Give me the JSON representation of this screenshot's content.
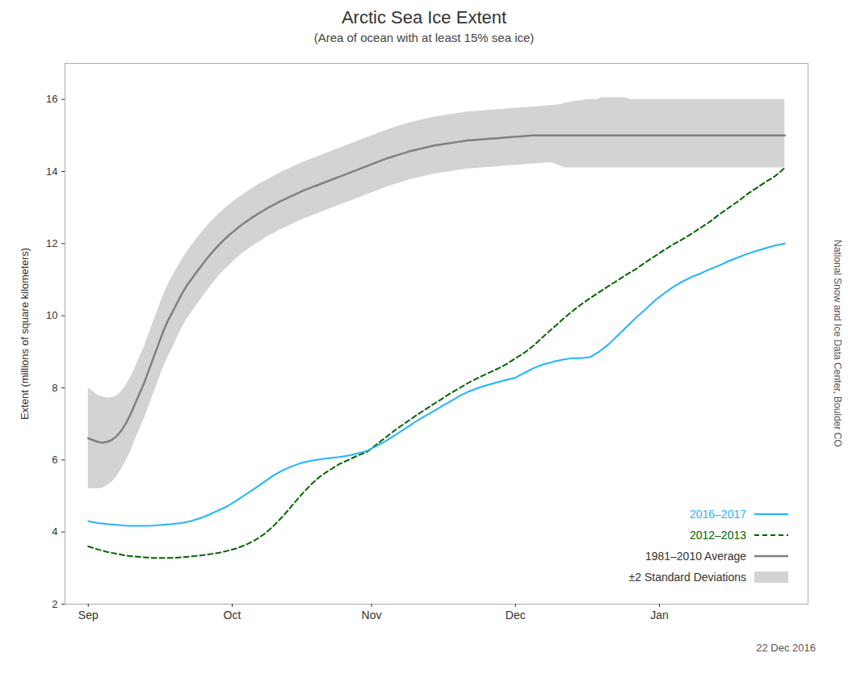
{
  "chart_data": {
    "type": "line",
    "title": "Arctic Sea Ice Extent",
    "subtitle": "(Area of ocean with at least 15% sea ice)",
    "ylabel": "Extent (millions of square kilometers)",
    "annotations": [
      "National Snow and Ice Data Center, Boulder CO",
      "22 Dec 2016"
    ],
    "xlim": [
      -5,
      155
    ],
    "xticks": [
      {
        "value": 0,
        "label": "Sep"
      },
      {
        "value": 31,
        "label": "Oct"
      },
      {
        "value": 61,
        "label": "Nov"
      },
      {
        "value": 92,
        "label": "Dec"
      },
      {
        "value": 123,
        "label": "Jan"
      }
    ],
    "ylim": [
      2,
      17
    ],
    "yticks": [
      2,
      4,
      6,
      8,
      10,
      12,
      14,
      16
    ],
    "grid": false,
    "legend": "lower right",
    "series": [
      {
        "name": "±2 Standard Deviations",
        "type": "area",
        "color": "#d3d3d3",
        "x": [
          0,
          1.01,
          2.01,
          3.02,
          4.03,
          5.03,
          6.04,
          7.05,
          8.05,
          9.06,
          10.07,
          11.07,
          12.08,
          13.09,
          14.09,
          15.1,
          16.11,
          17.11,
          18.12,
          19.13,
          20.13,
          21.14,
          22.15,
          23.15,
          24.16,
          25.17,
          26.17,
          27.18,
          28.19,
          29.19,
          30.2,
          31.21,
          32.21,
          33.22,
          34.23,
          35.23,
          36.24,
          37.25,
          38.26,
          39.26,
          40.27,
          41.28,
          42.28,
          43.29,
          44.3,
          45.3,
          46.31,
          47.32,
          48.32,
          49.33,
          50.34,
          51.34,
          52.35,
          53.36,
          54.36,
          55.37,
          56.38,
          57.38,
          58.39,
          59.4,
          60.4,
          61.41,
          62.42,
          63.42,
          64.43,
          65.44,
          66.44,
          67.45,
          68.46,
          69.46,
          70.47,
          71.48,
          72.48,
          73.49,
          74.5,
          75.5,
          76.51,
          77.52,
          78.52,
          79.53,
          80.54,
          81.54,
          82.55,
          83.56,
          84.56,
          85.57,
          86.58,
          87.58,
          88.59,
          89.6,
          90.6,
          91.61,
          92.62,
          93.62,
          94.63,
          95.64,
          96.64,
          97.65,
          98.66,
          99.66,
          100.67,
          101.68,
          102.68,
          103.69,
          104.7,
          105.7,
          106.71,
          107.72,
          108.72,
          109.73,
          110.74,
          111.74,
          112.75,
          113.76,
          114.77,
          115.77,
          116.78,
          117.79,
          118.79,
          119.8,
          120.81,
          121.81,
          122.82,
          123.83,
          124.83,
          125.84,
          126.85,
          127.85,
          128.86,
          129.87,
          130.87,
          131.88,
          132.89,
          133.89,
          134.9,
          135.91,
          136.91,
          137.92,
          138.93,
          139.93,
          140.94,
          141.95,
          142.95,
          143.96,
          144.97,
          145.97,
          146.98,
          147.99,
          148.99,
          150
        ],
        "lower": [
          5.2,
          5.2,
          5.2,
          5.22,
          5.28,
          5.38,
          5.52,
          5.72,
          5.95,
          6.22,
          6.55,
          6.85,
          7.15,
          7.5,
          7.85,
          8.2,
          8.55,
          8.85,
          9.1,
          9.38,
          9.65,
          9.89,
          10.07,
          10.26,
          10.43,
          10.62,
          10.79,
          10.96,
          11.11,
          11.25,
          11.38,
          11.5,
          11.62,
          11.73,
          11.82,
          11.92,
          12.0,
          12.08,
          12.17,
          12.24,
          12.31,
          12.38,
          12.44,
          12.5,
          12.56,
          12.62,
          12.68,
          12.73,
          12.78,
          12.83,
          12.88,
          12.93,
          12.98,
          13.03,
          13.08,
          13.13,
          13.18,
          13.23,
          13.28,
          13.33,
          13.38,
          13.43,
          13.48,
          13.53,
          13.58,
          13.62,
          13.66,
          13.7,
          13.74,
          13.78,
          13.81,
          13.84,
          13.87,
          13.9,
          13.93,
          13.95,
          13.97,
          13.99,
          14.01,
          14.03,
          14.05,
          14.07,
          14.08,
          14.09,
          14.1,
          14.11,
          14.12,
          14.13,
          14.14,
          14.15,
          14.16,
          14.17,
          14.18,
          14.19,
          14.2,
          14.21,
          14.22,
          14.23,
          14.24,
          14.25,
          14.2,
          14.15,
          14.1,
          14.1,
          14.1,
          14.1,
          14.1,
          14.1,
          14.1,
          14.1,
          14.1,
          14.1,
          14.1,
          14.1,
          14.1,
          14.1,
          14.1,
          14.1,
          14.1,
          14.1,
          14.1,
          14.1,
          14.1,
          14.1,
          14.1,
          14.1,
          14.1,
          14.1,
          14.1,
          14.1,
          14.1,
          14.1,
          14.1,
          14.1,
          14.1,
          14.1,
          14.1,
          14.1,
          14.1,
          14.1,
          14.1,
          14.1,
          14.1,
          14.1,
          14.1,
          14.1,
          14.1,
          14.1,
          14.1,
          14.1
        ],
        "upper": [
          8.0,
          7.9,
          7.8,
          7.75,
          7.72,
          7.73,
          7.77,
          7.88,
          8.05,
          8.28,
          8.55,
          8.85,
          9.15,
          9.5,
          9.85,
          10.2,
          10.55,
          10.85,
          11.1,
          11.32,
          11.55,
          11.75,
          11.93,
          12.1,
          12.27,
          12.42,
          12.57,
          12.7,
          12.83,
          12.95,
          13.06,
          13.16,
          13.26,
          13.35,
          13.44,
          13.52,
          13.6,
          13.68,
          13.75,
          13.82,
          13.89,
          13.96,
          14.02,
          14.08,
          14.14,
          14.2,
          14.26,
          14.31,
          14.36,
          14.41,
          14.46,
          14.51,
          14.56,
          14.61,
          14.66,
          14.71,
          14.76,
          14.81,
          14.86,
          14.91,
          14.96,
          15.01,
          15.06,
          15.11,
          15.16,
          15.2,
          15.24,
          15.28,
          15.32,
          15.36,
          15.39,
          15.42,
          15.45,
          15.48,
          15.51,
          15.53,
          15.55,
          15.57,
          15.59,
          15.61,
          15.63,
          15.65,
          15.66,
          15.67,
          15.68,
          15.69,
          15.7,
          15.71,
          15.72,
          15.73,
          15.74,
          15.75,
          15.76,
          15.77,
          15.78,
          15.79,
          15.8,
          15.81,
          15.82,
          15.83,
          15.84,
          15.85,
          15.9,
          15.92,
          15.94,
          15.96,
          15.98,
          16.0,
          16.0,
          16.0,
          16.05,
          16.05,
          16.05,
          16.05,
          16.05,
          16.05,
          16.0,
          16.0,
          16.0,
          16.0,
          16.0,
          16.0,
          16.0,
          16.0,
          16.0,
          16.0,
          16.0,
          16.0,
          16.0,
          16.0,
          16.0,
          16.0,
          16.0,
          16.0,
          16.0,
          16.0,
          16.0,
          16.0,
          16.0,
          16.0,
          16.0,
          16.0,
          16.0,
          16.0,
          16.0,
          16.0,
          16.0,
          16.0,
          16.0,
          16.0
        ]
      },
      {
        "name": "1981–2010 Average",
        "color": "#808080",
        "x": [
          0,
          1.01,
          2.01,
          3.02,
          4.03,
          5.03,
          6.04,
          7.05,
          8.05,
          9.06,
          10.07,
          11.07,
          12.08,
          13.09,
          14.09,
          15.1,
          16.11,
          17.11,
          18.12,
          19.13,
          20.13,
          21.14,
          22.15,
          23.15,
          24.16,
          25.17,
          26.17,
          27.18,
          28.19,
          29.19,
          30.2,
          31.21,
          32.21,
          33.22,
          34.23,
          35.23,
          36.24,
          37.25,
          38.26,
          39.26,
          40.27,
          41.28,
          42.28,
          43.29,
          44.3,
          45.3,
          46.31,
          47.32,
          48.32,
          49.33,
          50.34,
          51.34,
          52.35,
          53.36,
          54.36,
          55.37,
          56.38,
          57.38,
          58.39,
          59.4,
          60.4,
          61.41,
          62.42,
          63.42,
          64.43,
          65.44,
          66.44,
          67.45,
          68.46,
          69.46,
          70.47,
          71.48,
          72.48,
          73.49,
          74.5,
          75.5,
          76.51,
          77.52,
          78.52,
          79.53,
          80.54,
          81.54,
          82.55,
          83.56,
          84.56,
          85.57,
          86.58,
          87.58,
          88.59,
          89.6,
          90.6,
          91.61,
          92.62,
          93.62,
          94.63,
          95.64,
          96.64,
          97.65,
          98.66,
          99.66,
          100.67,
          101.68,
          102.68,
          103.69,
          104.7,
          105.7,
          106.71,
          107.72,
          108.72,
          109.73,
          110.74,
          111.74,
          112.75,
          113.76,
          114.77,
          115.77,
          116.78,
          117.79,
          118.79,
          119.8,
          120.81,
          121.81,
          122.82,
          123.83,
          124.83,
          125.84,
          126.85,
          127.85,
          128.86,
          129.87,
          130.87,
          131.88,
          132.89,
          133.89,
          134.9,
          135.91,
          136.91,
          137.92,
          138.93,
          139.93,
          140.94,
          141.95,
          142.95,
          143.96,
          144.97,
          145.97,
          146.98,
          147.99,
          148.99,
          150
        ],
        "values": [
          6.6,
          6.55,
          6.5,
          6.48,
          6.5,
          6.55,
          6.65,
          6.8,
          7.0,
          7.25,
          7.55,
          7.85,
          8.15,
          8.5,
          8.85,
          9.2,
          9.55,
          9.85,
          10.1,
          10.35,
          10.6,
          10.82,
          11.0,
          11.18,
          11.35,
          11.52,
          11.68,
          11.83,
          11.97,
          12.1,
          12.22,
          12.33,
          12.44,
          12.54,
          12.63,
          12.72,
          12.8,
          12.88,
          12.96,
          13.03,
          13.1,
          13.17,
          13.23,
          13.29,
          13.35,
          13.41,
          13.47,
          13.52,
          13.57,
          13.62,
          13.67,
          13.72,
          13.77,
          13.82,
          13.87,
          13.92,
          13.97,
          14.02,
          14.07,
          14.12,
          14.17,
          14.22,
          14.27,
          14.32,
          14.37,
          14.41,
          14.45,
          14.49,
          14.53,
          14.57,
          14.6,
          14.63,
          14.66,
          14.69,
          14.72,
          14.74,
          14.76,
          14.78,
          14.8,
          14.82,
          14.84,
          14.86,
          14.87,
          14.88,
          14.89,
          14.9,
          14.91,
          14.92,
          14.93,
          14.94,
          14.95,
          14.96,
          14.97,
          14.98,
          14.99,
          15.0,
          15.0,
          15.0,
          15.0,
          15.0,
          15.0,
          15.0,
          15.0,
          15.0,
          15.0,
          15.0,
          15.0,
          15.0,
          15.0,
          15.0,
          15.0,
          15.0,
          15.0,
          15.0,
          15.0,
          15.0,
          15.0,
          15.0,
          15.0,
          15.0,
          15.0,
          15.0,
          15.0,
          15.0,
          15.0,
          15.0,
          15.0,
          15.0,
          15.0,
          15.0,
          15.0,
          15.0,
          15.0,
          15.0,
          15.0,
          15.0,
          15.0,
          15.0,
          15.0,
          15.0,
          15.0,
          15.0,
          15.0,
          15.0,
          15.0,
          15.0,
          15.0,
          15.0,
          15.0,
          15.0
        ]
      },
      {
        "name": "2012–2013",
        "color": "#006400",
        "line_style": "dashed",
        "x": [
          0,
          2,
          4,
          6,
          8,
          10,
          12,
          14,
          16,
          18,
          20,
          22,
          24,
          26,
          28,
          30,
          32,
          34,
          36,
          38,
          40,
          42,
          44,
          46,
          48,
          50,
          52,
          54,
          56,
          58,
          60,
          62,
          64,
          66,
          68,
          70,
          72,
          74,
          76,
          78,
          80,
          82,
          84,
          86,
          88,
          90,
          92,
          94,
          96,
          98,
          100,
          102,
          104,
          106,
          108,
          110,
          112,
          114,
          116,
          118,
          120,
          122,
          124,
          126,
          128,
          130,
          132,
          134,
          136,
          138,
          140,
          142,
          144,
          146,
          148,
          150
        ],
        "values": [
          3.6,
          3.52,
          3.45,
          3.4,
          3.35,
          3.32,
          3.3,
          3.28,
          3.28,
          3.28,
          3.3,
          3.32,
          3.35,
          3.38,
          3.42,
          3.48,
          3.55,
          3.65,
          3.78,
          3.95,
          4.18,
          4.45,
          4.75,
          5.05,
          5.32,
          5.55,
          5.72,
          5.88,
          6.0,
          6.12,
          6.22,
          6.42,
          6.62,
          6.82,
          7.0,
          7.18,
          7.35,
          7.52,
          7.68,
          7.85,
          8.0,
          8.15,
          8.28,
          8.4,
          8.52,
          8.65,
          8.82,
          8.98,
          9.18,
          9.42,
          9.65,
          9.88,
          10.1,
          10.3,
          10.48,
          10.65,
          10.82,
          10.98,
          11.15,
          11.3,
          11.48,
          11.65,
          11.82,
          11.98,
          12.12,
          12.28,
          12.45,
          12.62,
          12.82,
          13.0,
          13.18,
          13.38,
          13.55,
          13.72,
          13.88,
          14.1
        ]
      },
      {
        "name": "2016–2017",
        "color": "#1eb4ff",
        "x": [
          0,
          2,
          4,
          6,
          8,
          10,
          12,
          14,
          16,
          18,
          20,
          22,
          24,
          26,
          28,
          30,
          32,
          34,
          36,
          38,
          40,
          42,
          44,
          46,
          48,
          50,
          52,
          54,
          56,
          58,
          60,
          62,
          64,
          66,
          68,
          70,
          72,
          74,
          76,
          78,
          80,
          82,
          84,
          86,
          88,
          90,
          92,
          94,
          96,
          98,
          100,
          102,
          104,
          106,
          108,
          110,
          112,
          114,
          116,
          118,
          120,
          122,
          124,
          126,
          128,
          130,
          132,
          134,
          136,
          138,
          140,
          142,
          144,
          146,
          148,
          150
        ],
        "values": [
          4.3,
          4.25,
          4.22,
          4.2,
          4.18,
          4.17,
          4.17,
          4.18,
          4.2,
          4.22,
          4.25,
          4.3,
          4.38,
          4.48,
          4.6,
          4.72,
          4.88,
          5.05,
          5.22,
          5.4,
          5.58,
          5.72,
          5.83,
          5.92,
          5.98,
          6.02,
          6.05,
          6.08,
          6.12,
          6.18,
          6.25,
          6.38,
          6.52,
          6.68,
          6.85,
          7.02,
          7.18,
          7.32,
          7.48,
          7.62,
          7.78,
          7.9,
          8.0,
          8.08,
          8.15,
          8.22,
          8.28,
          8.42,
          8.55,
          8.65,
          8.72,
          8.78,
          8.82,
          8.82,
          8.85,
          9.0,
          9.2,
          9.45,
          9.7,
          9.95,
          10.18,
          10.42,
          10.62,
          10.8,
          10.95,
          11.08,
          11.18,
          11.3,
          11.4,
          11.52,
          11.62,
          11.72,
          11.8,
          11.88,
          11.95,
          12.0
        ]
      }
    ]
  }
}
